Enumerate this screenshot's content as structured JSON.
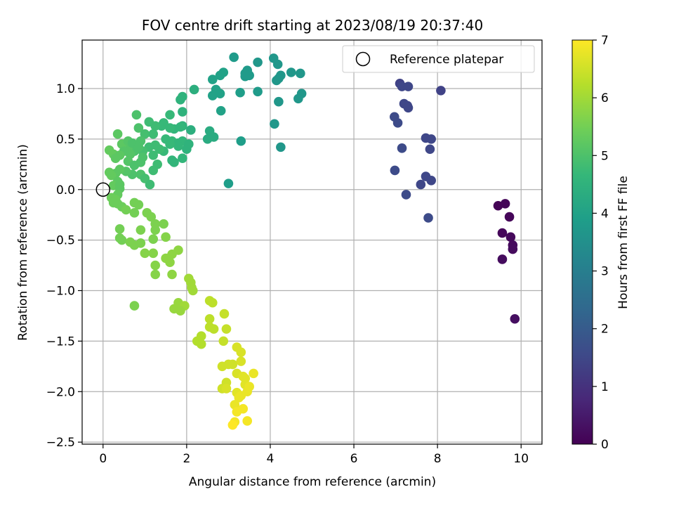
{
  "chart_data": {
    "type": "scatter",
    "title": "FOV centre drift starting at 2023/08/19 20:37:40",
    "xlabel": "Angular distance from reference (arcmin)",
    "ylabel": "Rotation from reference (arcmin)",
    "xlim": [
      -0.5,
      10.5
    ],
    "ylim": [
      -2.52,
      1.48
    ],
    "xticks": [
      0,
      2,
      4,
      6,
      8,
      10
    ],
    "xtick_labels": [
      "0",
      "2",
      "4",
      "6",
      "8",
      "10"
    ],
    "yticks": [
      -2.5,
      -2.0,
      -1.5,
      -1.0,
      -0.5,
      0.0,
      0.5,
      1.0
    ],
    "ytick_labels": [
      "−2.5",
      "−2.0",
      "−1.5",
      "−1.0",
      "−0.5",
      "0.0",
      "0.5",
      "1.0"
    ],
    "grid": true,
    "colormap": "viridis",
    "colorbar": {
      "label": "Hours from first FF file",
      "range": [
        0,
        7
      ],
      "ticks": [
        0,
        1,
        2,
        3,
        4,
        5,
        6,
        7
      ],
      "tick_labels": [
        "0",
        "1",
        "2",
        "3",
        "4",
        "5",
        "6",
        "7"
      ]
    },
    "legend": {
      "position": "top-right",
      "entries": [
        {
          "label": "Reference platepar",
          "marker": "open-circle"
        }
      ]
    },
    "reference_point": {
      "x": 0,
      "y": 0
    },
    "points": [
      {
        "x": 9.45,
        "y": -0.16,
        "c": 0.05
      },
      {
        "x": 9.62,
        "y": -0.14,
        "c": 0.08
      },
      {
        "x": 9.72,
        "y": -0.27,
        "c": 0.1
      },
      {
        "x": 9.55,
        "y": -0.43,
        "c": 0.12
      },
      {
        "x": 9.75,
        "y": -0.47,
        "c": 0.15
      },
      {
        "x": 9.8,
        "y": -0.55,
        "c": 0.18
      },
      {
        "x": 9.8,
        "y": -0.59,
        "c": 0.2
      },
      {
        "x": 9.55,
        "y": -0.69,
        "c": 0.22
      },
      {
        "x": 9.85,
        "y": -1.28,
        "c": 0.25
      },
      {
        "x": 8.08,
        "y": 0.98,
        "c": 1.4
      },
      {
        "x": 7.1,
        "y": 1.05,
        "c": 1.4
      },
      {
        "x": 7.15,
        "y": 1.02,
        "c": 1.5
      },
      {
        "x": 7.3,
        "y": 1.02,
        "c": 1.5
      },
      {
        "x": 7.2,
        "y": 0.85,
        "c": 1.5
      },
      {
        "x": 7.28,
        "y": 0.83,
        "c": 1.5
      },
      {
        "x": 7.3,
        "y": 0.81,
        "c": 1.5
      },
      {
        "x": 6.97,
        "y": 0.72,
        "c": 1.6
      },
      {
        "x": 7.05,
        "y": 0.66,
        "c": 1.6
      },
      {
        "x": 7.15,
        "y": 0.41,
        "c": 1.6
      },
      {
        "x": 7.72,
        "y": 0.51,
        "c": 1.5
      },
      {
        "x": 7.85,
        "y": 0.5,
        "c": 1.5
      },
      {
        "x": 7.82,
        "y": 0.4,
        "c": 1.5
      },
      {
        "x": 6.98,
        "y": 0.19,
        "c": 1.6
      },
      {
        "x": 7.72,
        "y": 0.13,
        "c": 1.5
      },
      {
        "x": 7.85,
        "y": 0.09,
        "c": 1.5
      },
      {
        "x": 7.6,
        "y": 0.05,
        "c": 1.5
      },
      {
        "x": 7.25,
        "y": -0.05,
        "c": 1.6
      },
      {
        "x": 7.78,
        "y": -0.28,
        "c": 1.6
      },
      {
        "x": 3.13,
        "y": 1.31,
        "c": 3.8
      },
      {
        "x": 4.08,
        "y": 1.3,
        "c": 3.7
      },
      {
        "x": 3.45,
        "y": 1.18,
        "c": 3.8
      },
      {
        "x": 3.7,
        "y": 1.26,
        "c": 3.7
      },
      {
        "x": 4.18,
        "y": 1.24,
        "c": 3.7
      },
      {
        "x": 3.4,
        "y": 1.15,
        "c": 3.8
      },
      {
        "x": 3.5,
        "y": 1.13,
        "c": 3.8
      },
      {
        "x": 3.4,
        "y": 1.12,
        "c": 3.8
      },
      {
        "x": 4.5,
        "y": 1.16,
        "c": 3.7
      },
      {
        "x": 4.72,
        "y": 1.15,
        "c": 3.7
      },
      {
        "x": 4.25,
        "y": 1.13,
        "c": 3.7
      },
      {
        "x": 4.2,
        "y": 1.1,
        "c": 3.7
      },
      {
        "x": 4.15,
        "y": 1.08,
        "c": 3.7
      },
      {
        "x": 2.88,
        "y": 1.16,
        "c": 4.0
      },
      {
        "x": 2.8,
        "y": 1.13,
        "c": 4.0
      },
      {
        "x": 2.62,
        "y": 1.09,
        "c": 4.0
      },
      {
        "x": 2.7,
        "y": 0.99,
        "c": 4.0
      },
      {
        "x": 2.8,
        "y": 0.95,
        "c": 4.0
      },
      {
        "x": 3.28,
        "y": 0.96,
        "c": 3.9
      },
      {
        "x": 3.7,
        "y": 0.97,
        "c": 3.8
      },
      {
        "x": 4.75,
        "y": 0.95,
        "c": 3.7
      },
      {
        "x": 4.67,
        "y": 0.9,
        "c": 3.7
      },
      {
        "x": 4.2,
        "y": 0.87,
        "c": 3.7
      },
      {
        "x": 2.82,
        "y": 0.78,
        "c": 4.0
      },
      {
        "x": 2.62,
        "y": 0.93,
        "c": 4.0
      },
      {
        "x": 4.1,
        "y": 0.65,
        "c": 3.7
      },
      {
        "x": 3.3,
        "y": 0.48,
        "c": 3.9
      },
      {
        "x": 4.25,
        "y": 0.42,
        "c": 3.7
      },
      {
        "x": 3.0,
        "y": 0.06,
        "c": 3.9
      },
      {
        "x": 2.18,
        "y": 0.99,
        "c": 4.4
      },
      {
        "x": 1.9,
        "y": 0.92,
        "c": 4.5
      },
      {
        "x": 1.85,
        "y": 0.89,
        "c": 4.5
      },
      {
        "x": 2.5,
        "y": 0.5,
        "c": 4.3
      },
      {
        "x": 2.55,
        "y": 0.58,
        "c": 4.3
      },
      {
        "x": 2.65,
        "y": 0.52,
        "c": 4.3
      },
      {
        "x": 2.1,
        "y": 0.59,
        "c": 4.4
      },
      {
        "x": 1.9,
        "y": 0.77,
        "c": 4.5
      },
      {
        "x": 1.6,
        "y": 0.74,
        "c": 4.7
      },
      {
        "x": 1.9,
        "y": 0.63,
        "c": 4.5
      },
      {
        "x": 1.85,
        "y": 0.62,
        "c": 4.6
      },
      {
        "x": 1.7,
        "y": 0.6,
        "c": 4.6
      },
      {
        "x": 1.6,
        "y": 0.61,
        "c": 4.7
      },
      {
        "x": 1.45,
        "y": 0.66,
        "c": 4.7
      },
      {
        "x": 1.4,
        "y": 0.63,
        "c": 4.7
      },
      {
        "x": 1.25,
        "y": 0.63,
        "c": 4.8
      },
      {
        "x": 1.1,
        "y": 0.67,
        "c": 4.8
      },
      {
        "x": 0.8,
        "y": 0.74,
        "c": 5.0
      },
      {
        "x": 0.85,
        "y": 0.61,
        "c": 5.0
      },
      {
        "x": 1.0,
        "y": 0.55,
        "c": 4.9
      },
      {
        "x": 1.2,
        "y": 0.55,
        "c": 4.8
      },
      {
        "x": 1.5,
        "y": 0.5,
        "c": 4.7
      },
      {
        "x": 1.65,
        "y": 0.48,
        "c": 4.7
      },
      {
        "x": 1.8,
        "y": 0.46,
        "c": 4.6
      },
      {
        "x": 1.9,
        "y": 0.48,
        "c": 4.6
      },
      {
        "x": 2.05,
        "y": 0.45,
        "c": 4.5
      },
      {
        "x": 2.0,
        "y": 0.4,
        "c": 4.5
      },
      {
        "x": 1.8,
        "y": 0.43,
        "c": 4.6
      },
      {
        "x": 1.6,
        "y": 0.45,
        "c": 4.7
      },
      {
        "x": 1.45,
        "y": 0.38,
        "c": 4.7
      },
      {
        "x": 1.35,
        "y": 0.4,
        "c": 4.8
      },
      {
        "x": 1.25,
        "y": 0.44,
        "c": 4.8
      },
      {
        "x": 1.1,
        "y": 0.42,
        "c": 4.8
      },
      {
        "x": 0.95,
        "y": 0.38,
        "c": 4.9
      },
      {
        "x": 0.75,
        "y": 0.38,
        "c": 5.0
      },
      {
        "x": 0.6,
        "y": 0.42,
        "c": 5.1
      },
      {
        "x": 0.45,
        "y": 0.45,
        "c": 5.2
      },
      {
        "x": 0.35,
        "y": 0.55,
        "c": 5.2
      },
      {
        "x": 0.6,
        "y": 0.48,
        "c": 5.1
      },
      {
        "x": 0.7,
        "y": 0.46,
        "c": 5.0
      },
      {
        "x": 0.9,
        "y": 0.48,
        "c": 5.0
      },
      {
        "x": 0.85,
        "y": 0.42,
        "c": 5.0
      },
      {
        "x": 0.65,
        "y": 0.35,
        "c": 5.1
      },
      {
        "x": 0.5,
        "y": 0.38,
        "c": 5.1
      },
      {
        "x": 0.15,
        "y": 0.39,
        "c": 5.3
      },
      {
        "x": 0.25,
        "y": 0.35,
        "c": 5.3
      },
      {
        "x": 0.4,
        "y": 0.34,
        "c": 5.2
      },
      {
        "x": 0.3,
        "y": 0.31,
        "c": 5.2
      },
      {
        "x": 0.6,
        "y": 0.28,
        "c": 5.1
      },
      {
        "x": 0.75,
        "y": 0.24,
        "c": 5.0
      },
      {
        "x": 0.9,
        "y": 0.27,
        "c": 5.0
      },
      {
        "x": 0.95,
        "y": 0.32,
        "c": 5.0
      },
      {
        "x": 1.2,
        "y": 0.34,
        "c": 4.8
      },
      {
        "x": 1.7,
        "y": 0.27,
        "c": 4.6
      },
      {
        "x": 1.65,
        "y": 0.29,
        "c": 4.6
      },
      {
        "x": 1.9,
        "y": 0.31,
        "c": 4.6
      },
      {
        "x": 1.3,
        "y": 0.25,
        "c": 4.8
      },
      {
        "x": 1.2,
        "y": 0.19,
        "c": 4.8
      },
      {
        "x": 0.9,
        "y": 0.15,
        "c": 5.0
      },
      {
        "x": 0.7,
        "y": 0.15,
        "c": 5.0
      },
      {
        "x": 0.55,
        "y": 0.18,
        "c": 5.1
      },
      {
        "x": 0.4,
        "y": 0.2,
        "c": 5.2
      },
      {
        "x": 0.3,
        "y": 0.16,
        "c": 5.2
      },
      {
        "x": 0.2,
        "y": 0.14,
        "c": 5.3
      },
      {
        "x": 0.15,
        "y": 0.17,
        "c": 5.3
      },
      {
        "x": 1.0,
        "y": 0.11,
        "c": 4.9
      },
      {
        "x": 0.35,
        "y": 0.08,
        "c": 5.2
      },
      {
        "x": 0.25,
        "y": 0.04,
        "c": 5.3
      },
      {
        "x": 0.4,
        "y": 0.05,
        "c": 5.2
      },
      {
        "x": 1.12,
        "y": 0.05,
        "c": 4.8
      },
      {
        "x": 0.4,
        "y": 0.01,
        "c": 5.2
      },
      {
        "x": 0.35,
        "y": -0.05,
        "c": 5.3
      },
      {
        "x": 0.2,
        "y": -0.08,
        "c": 5.4
      },
      {
        "x": 0.3,
        "y": -0.1,
        "c": 5.4
      },
      {
        "x": 0.25,
        "y": -0.13,
        "c": 5.4
      },
      {
        "x": 0.35,
        "y": -0.14,
        "c": 5.4
      },
      {
        "x": 0.45,
        "y": -0.17,
        "c": 5.4
      },
      {
        "x": 0.55,
        "y": -0.2,
        "c": 5.5
      },
      {
        "x": 0.75,
        "y": -0.13,
        "c": 5.5
      },
      {
        "x": 0.85,
        "y": -0.15,
        "c": 5.5
      },
      {
        "x": 0.75,
        "y": -0.23,
        "c": 5.5
      },
      {
        "x": 1.05,
        "y": -0.23,
        "c": 5.6
      },
      {
        "x": 1.15,
        "y": -0.27,
        "c": 5.6
      },
      {
        "x": 1.25,
        "y": -0.34,
        "c": 5.6
      },
      {
        "x": 1.45,
        "y": -0.34,
        "c": 5.6
      },
      {
        "x": 0.4,
        "y": -0.39,
        "c": 5.5
      },
      {
        "x": 0.9,
        "y": -0.4,
        "c": 5.6
      },
      {
        "x": 1.25,
        "y": -0.4,
        "c": 5.6
      },
      {
        "x": 1.2,
        "y": -0.49,
        "c": 5.6
      },
      {
        "x": 1.5,
        "y": -0.47,
        "c": 5.7
      },
      {
        "x": 0.4,
        "y": -0.48,
        "c": 5.5
      },
      {
        "x": 0.45,
        "y": -0.5,
        "c": 5.5
      },
      {
        "x": 0.65,
        "y": -0.52,
        "c": 5.6
      },
      {
        "x": 0.75,
        "y": -0.55,
        "c": 5.6
      },
      {
        "x": 0.9,
        "y": -0.53,
        "c": 5.6
      },
      {
        "x": 1.8,
        "y": -0.6,
        "c": 5.8
      },
      {
        "x": 1.0,
        "y": -0.63,
        "c": 5.7
      },
      {
        "x": 1.2,
        "y": -0.63,
        "c": 5.7
      },
      {
        "x": 1.65,
        "y": -0.64,
        "c": 5.8
      },
      {
        "x": 1.5,
        "y": -0.68,
        "c": 5.8
      },
      {
        "x": 1.6,
        "y": -0.72,
        "c": 5.8
      },
      {
        "x": 1.25,
        "y": -0.75,
        "c": 5.7
      },
      {
        "x": 1.25,
        "y": -0.84,
        "c": 5.7
      },
      {
        "x": 1.65,
        "y": -0.84,
        "c": 5.8
      },
      {
        "x": 2.05,
        "y": -0.88,
        "c": 6.0
      },
      {
        "x": 2.1,
        "y": -0.92,
        "c": 6.0
      },
      {
        "x": 2.12,
        "y": -0.97,
        "c": 6.0
      },
      {
        "x": 2.15,
        "y": -1.0,
        "c": 6.0
      },
      {
        "x": 1.8,
        "y": -1.12,
        "c": 5.9
      },
      {
        "x": 1.95,
        "y": -1.15,
        "c": 6.0
      },
      {
        "x": 1.7,
        "y": -1.18,
        "c": 5.9
      },
      {
        "x": 1.85,
        "y": -1.2,
        "c": 5.9
      },
      {
        "x": 0.75,
        "y": -1.15,
        "c": 5.6
      },
      {
        "x": 2.55,
        "y": -1.1,
        "c": 6.3
      },
      {
        "x": 2.62,
        "y": -1.12,
        "c": 6.3
      },
      {
        "x": 2.9,
        "y": -1.23,
        "c": 6.4
      },
      {
        "x": 2.55,
        "y": -1.28,
        "c": 6.3
      },
      {
        "x": 2.55,
        "y": -1.36,
        "c": 6.3
      },
      {
        "x": 2.65,
        "y": -1.38,
        "c": 6.3
      },
      {
        "x": 2.95,
        "y": -1.38,
        "c": 6.4
      },
      {
        "x": 2.35,
        "y": -1.45,
        "c": 6.2
      },
      {
        "x": 2.88,
        "y": -1.5,
        "c": 6.4
      },
      {
        "x": 2.25,
        "y": -1.5,
        "c": 6.2
      },
      {
        "x": 2.35,
        "y": -1.53,
        "c": 6.2
      },
      {
        "x": 3.2,
        "y": -1.56,
        "c": 6.6
      },
      {
        "x": 3.3,
        "y": -1.61,
        "c": 6.6
      },
      {
        "x": 2.85,
        "y": -1.75,
        "c": 6.5
      },
      {
        "x": 3.0,
        "y": -1.73,
        "c": 6.5
      },
      {
        "x": 3.1,
        "y": -1.73,
        "c": 6.5
      },
      {
        "x": 3.3,
        "y": -1.7,
        "c": 6.6
      },
      {
        "x": 3.2,
        "y": -1.82,
        "c": 6.6
      },
      {
        "x": 3.35,
        "y": -1.85,
        "c": 6.7
      },
      {
        "x": 3.4,
        "y": -1.87,
        "c": 6.7
      },
      {
        "x": 3.6,
        "y": -1.82,
        "c": 6.8
      },
      {
        "x": 2.95,
        "y": -1.91,
        "c": 6.5
      },
      {
        "x": 3.4,
        "y": -1.93,
        "c": 6.7
      },
      {
        "x": 3.5,
        "y": -1.95,
        "c": 6.8
      },
      {
        "x": 2.85,
        "y": -1.97,
        "c": 6.5
      },
      {
        "x": 2.95,
        "y": -1.97,
        "c": 6.6
      },
      {
        "x": 3.2,
        "y": -2.01,
        "c": 6.7
      },
      {
        "x": 3.3,
        "y": -2.04,
        "c": 6.8
      },
      {
        "x": 3.45,
        "y": -2.0,
        "c": 6.8
      },
      {
        "x": 3.25,
        "y": -2.06,
        "c": 6.8
      },
      {
        "x": 3.15,
        "y": -2.13,
        "c": 6.8
      },
      {
        "x": 3.35,
        "y": -2.17,
        "c": 6.9
      },
      {
        "x": 3.2,
        "y": -2.2,
        "c": 6.9
      },
      {
        "x": 3.15,
        "y": -2.3,
        "c": 6.9
      },
      {
        "x": 3.45,
        "y": -2.29,
        "c": 6.9
      },
      {
        "x": 3.1,
        "y": -2.33,
        "c": 7.0
      }
    ]
  }
}
